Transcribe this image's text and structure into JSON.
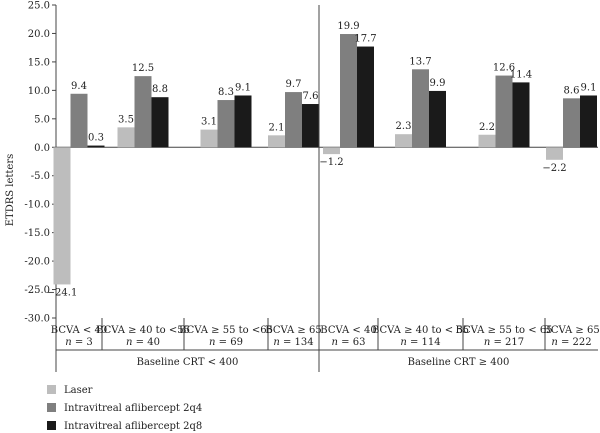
{
  "chart_data": {
    "type": "bar",
    "ylabel": "ETDRS letters",
    "ylim": [
      -30,
      25
    ],
    "yticks": [
      "25.0",
      "20.0",
      "15.0",
      "10.0",
      "5.0",
      "0.0",
      "-5.0",
      "-10.0",
      "-15.0",
      "-20.0",
      "-25.0",
      "-30.0"
    ],
    "categories": [
      {
        "line1": "BCVA < 40",
        "n_prefix": "n",
        "n_value": " = 3"
      },
      {
        "line1": "BCVA ≥ 40 to <55",
        "n_prefix": "n",
        "n_value": " = 40"
      },
      {
        "line1": "BCVA ≥ 55 to <65",
        "n_prefix": "n",
        "n_value": " = 69"
      },
      {
        "line1": "BCVA ≥ 65",
        "n_prefix": "n",
        "n_value": " = 134"
      },
      {
        "line1": "BCVA < 40",
        "n_prefix": "n",
        "n_value": " = 63"
      },
      {
        "line1": "BCVA ≥ 40 to < 55",
        "n_prefix": "n",
        "n_value": " = 114"
      },
      {
        "line1": "BCVA ≥ 55 to < 65",
        "n_prefix": "n",
        "n_value": " = 217"
      },
      {
        "line1": "BCVA ≥ 65",
        "n_prefix": "n",
        "n_value": " = 222"
      }
    ],
    "groups": [
      {
        "label": "Baseline CRT < 400"
      },
      {
        "label": "Baseline CRT ≥ 400"
      }
    ],
    "series": [
      {
        "name": "Laser",
        "color": "#bdbdbd",
        "values": [
          -24.1,
          3.5,
          3.1,
          2.1,
          -1.2,
          2.3,
          2.2,
          -2.2
        ],
        "labels": [
          "−24.1",
          "3.5",
          "3.1",
          "2.1",
          "−1.2",
          "2.3",
          "2.2",
          "−2.2"
        ]
      },
      {
        "name": "Intravitreal aflibercept 2q4",
        "color": "#7f7f7f",
        "values": [
          9.4,
          12.5,
          8.3,
          9.7,
          19.9,
          13.7,
          12.6,
          8.6
        ],
        "labels": [
          "9.4",
          "12.5",
          "8.3",
          "9.7",
          "19.9",
          "13.7",
          "12.6",
          "8.6"
        ]
      },
      {
        "name": "Intravitreal aflibercept 2q8",
        "color": "#1a1a1a",
        "values": [
          0.3,
          8.8,
          9.1,
          7.6,
          17.7,
          9.9,
          11.4,
          9.1
        ],
        "labels": [
          "0.3",
          "8.8",
          "9.1",
          "7.6",
          "17.7",
          "9.9",
          "11.4",
          "9.1"
        ]
      }
    ],
    "grid": false,
    "legend_position": "bottom-left"
  }
}
